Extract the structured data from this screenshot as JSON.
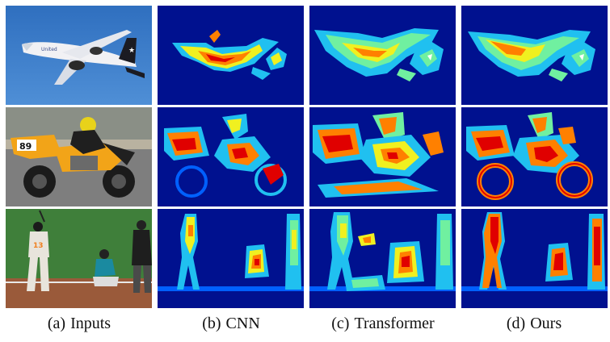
{
  "figure": {
    "rows": [
      "airplane",
      "motorcycle",
      "baseball"
    ],
    "columns": [
      {
        "tag": "(a)",
        "label": "Inputs"
      },
      {
        "tag": "(b)",
        "label": "CNN"
      },
      {
        "tag": "(c)",
        "label": "Transformer"
      },
      {
        "tag": "(d)",
        "label": "Ours"
      }
    ],
    "photo_text": {
      "plane_livery": "United",
      "race_number": "89",
      "jersey_number": "13"
    },
    "heatmap_colormap": [
      "#00118f",
      "#0060ff",
      "#20d0f0",
      "#70f0a0",
      "#f0f020",
      "#ff8000",
      "#e00000",
      "#9a0000"
    ]
  }
}
